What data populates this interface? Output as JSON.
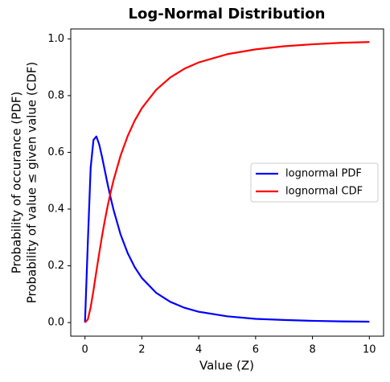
{
  "chart_data": {
    "type": "line",
    "title": "Log-Normal Distribution",
    "xlabel": "Value (Z)",
    "ylabel": [
      "Probability of occurance (PDF)",
      "Probability of value ≤ given value (CDF)"
    ],
    "x": [
      0,
      0.1,
      0.2,
      0.3,
      0.4,
      0.5,
      0.6,
      0.7,
      0.8,
      0.9,
      1,
      1.25,
      1.5,
      1.75,
      2,
      2.5,
      3,
      3.5,
      4,
      5,
      6,
      7,
      8,
      9,
      10
    ],
    "series": [
      {
        "name": "lognormal PDF",
        "color": "#0000ff",
        "values": [
          0,
          0.282,
          0.546,
          0.644,
          0.656,
          0.628,
          0.584,
          0.535,
          0.486,
          0.441,
          0.399,
          0.311,
          0.245,
          0.195,
          0.157,
          0.105,
          0.073,
          0.052,
          0.038,
          0.022,
          0.013,
          0.009,
          0.006,
          0.004,
          0.003
        ]
      },
      {
        "name": "lognormal CDF",
        "color": "#ff0000",
        "values": [
          0,
          0.011,
          0.054,
          0.114,
          0.18,
          0.244,
          0.305,
          0.361,
          0.412,
          0.458,
          0.5,
          0.588,
          0.657,
          0.712,
          0.756,
          0.82,
          0.864,
          0.895,
          0.917,
          0.946,
          0.963,
          0.974,
          0.981,
          0.986,
          0.989
        ]
      }
    ],
    "xlim": [
      -0.5,
      10.5
    ],
    "ylim": [
      -0.048,
      1.035
    ],
    "xticks": [
      0,
      2,
      4,
      6,
      8,
      10
    ],
    "yticks": [
      {
        "value": 0,
        "label": "0.0"
      },
      {
        "value": 0.2,
        "label": "0.2"
      },
      {
        "value": 0.4,
        "label": "0.4"
      },
      {
        "value": 0.6,
        "label": "0.6"
      },
      {
        "value": 0.8,
        "label": "0.8"
      },
      {
        "value": 1,
        "label": "1.0"
      }
    ],
    "grid": false,
    "legend": "right"
  }
}
